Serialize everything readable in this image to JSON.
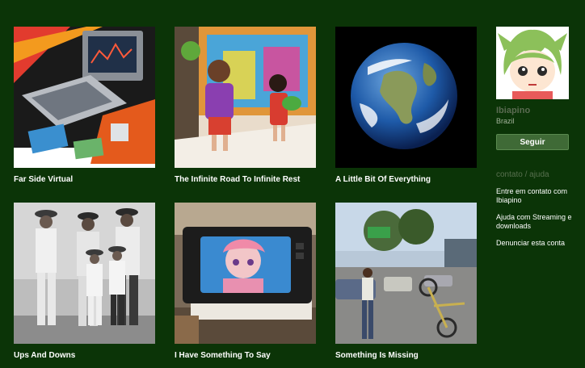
{
  "albums": [
    {
      "title": "Far Side Virtual"
    },
    {
      "title": "The Infinite Road To Infinite Rest"
    },
    {
      "title": "A Little Bit Of Everything"
    },
    {
      "title": "Ups And Downs"
    },
    {
      "title": "I Have Something To Say"
    },
    {
      "title": "Something Is Missing"
    }
  ],
  "profile": {
    "name": "Ibiapino",
    "country": "Brazil",
    "follow_label": "Seguir"
  },
  "contact": {
    "heading": "contato / ajuda",
    "links": [
      "Entre em contato com Ibiapino",
      "Ajuda com Streaming e downloads",
      "Denunciar esta conta"
    ]
  },
  "colors": {
    "background": "#0b3407",
    "button": "#3f6a36",
    "muted_text": "#58704f"
  }
}
